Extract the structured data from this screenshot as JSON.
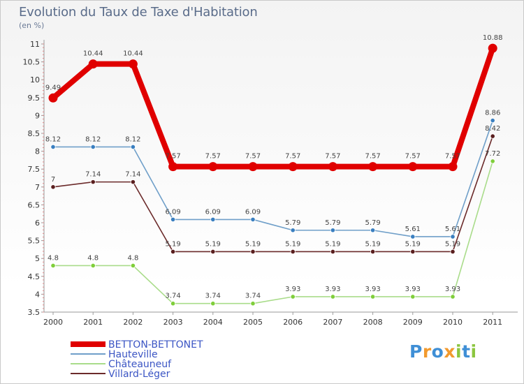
{
  "header": {
    "title": "Evolution du Taux de Taxe d'Habitation",
    "subtitle": "(en %)"
  },
  "brand": {
    "letters": [
      "P",
      "r",
      "o",
      "x",
      "i",
      "t",
      "i"
    ],
    "colors": [
      "#3f8fd6",
      "#f29a2e",
      "#3f8fd6",
      "#f29a2e",
      "#8cc63f",
      "#3f8fd6",
      "#8cc63f"
    ]
  },
  "chart_data": {
    "type": "line",
    "title": "Evolution du Taux de Taxe d'Habitation",
    "subtitle": "(en %)",
    "x": [
      "2000",
      "2001",
      "2002",
      "2003",
      "2004",
      "2005",
      "2006",
      "2007",
      "2008",
      "2009",
      "2010",
      "2011"
    ],
    "ylim": [
      3.5,
      11
    ],
    "yticks": [
      "3.5",
      "4",
      "4.5",
      "5",
      "5.5",
      "6",
      "6.5",
      "7",
      "7.5",
      "8",
      "8.5",
      "9",
      "9.5",
      "10",
      "10.5",
      "11"
    ],
    "grid": false,
    "legend_position": "bottom-left",
    "series": [
      {
        "name": "BETTON-BETTONET",
        "color": "#e00000",
        "style": "thick",
        "values": [
          9.49,
          10.44,
          10.44,
          7.57,
          7.57,
          7.57,
          7.57,
          7.57,
          7.57,
          7.57,
          7.57,
          10.88
        ],
        "labels": [
          "9.49",
          "10.44",
          "10.44",
          "7.57",
          "7.57",
          "7.57",
          "7.57",
          "7.57",
          "7.57",
          "7.57",
          "7.57",
          "10.88"
        ]
      },
      {
        "name": "Hauteville",
        "color": "#6f9fc9",
        "marker": "#3a7fc0",
        "style": "thin",
        "values": [
          8.12,
          8.12,
          8.12,
          6.09,
          6.09,
          6.09,
          5.79,
          5.79,
          5.79,
          5.61,
          5.61,
          8.86
        ],
        "labels": [
          "8.12",
          "8.12",
          "8.12",
          "6.09",
          "6.09",
          "6.09",
          "5.79",
          "5.79",
          "5.79",
          "5.61",
          "5.61",
          "8.86"
        ]
      },
      {
        "name": "Châteauneuf",
        "color": "#a9dc8a",
        "marker": "#7fce3a",
        "style": "thin",
        "values": [
          4.8,
          4.8,
          4.8,
          3.74,
          3.74,
          3.74,
          3.93,
          3.93,
          3.93,
          3.93,
          3.93,
          7.72
        ],
        "labels": [
          "4.8",
          "4.8",
          "4.8",
          "3.74",
          "3.74",
          "3.74",
          "3.93",
          "3.93",
          "3.93",
          "3.93",
          "3.93",
          "7.72"
        ]
      },
      {
        "name": "Villard-Léger",
        "color": "#6b2a2a",
        "marker": "#5a1f1f",
        "style": "thin",
        "values": [
          7,
          7.14,
          7.14,
          5.19,
          5.19,
          5.19,
          5.19,
          5.19,
          5.19,
          5.19,
          5.19,
          8.42
        ],
        "labels": [
          "7",
          "7.14",
          "7.14",
          "5.19",
          "5.19",
          "5.19",
          "5.19",
          "5.19",
          "5.19",
          "5.19",
          "5.19",
          "8.42"
        ]
      }
    ]
  }
}
